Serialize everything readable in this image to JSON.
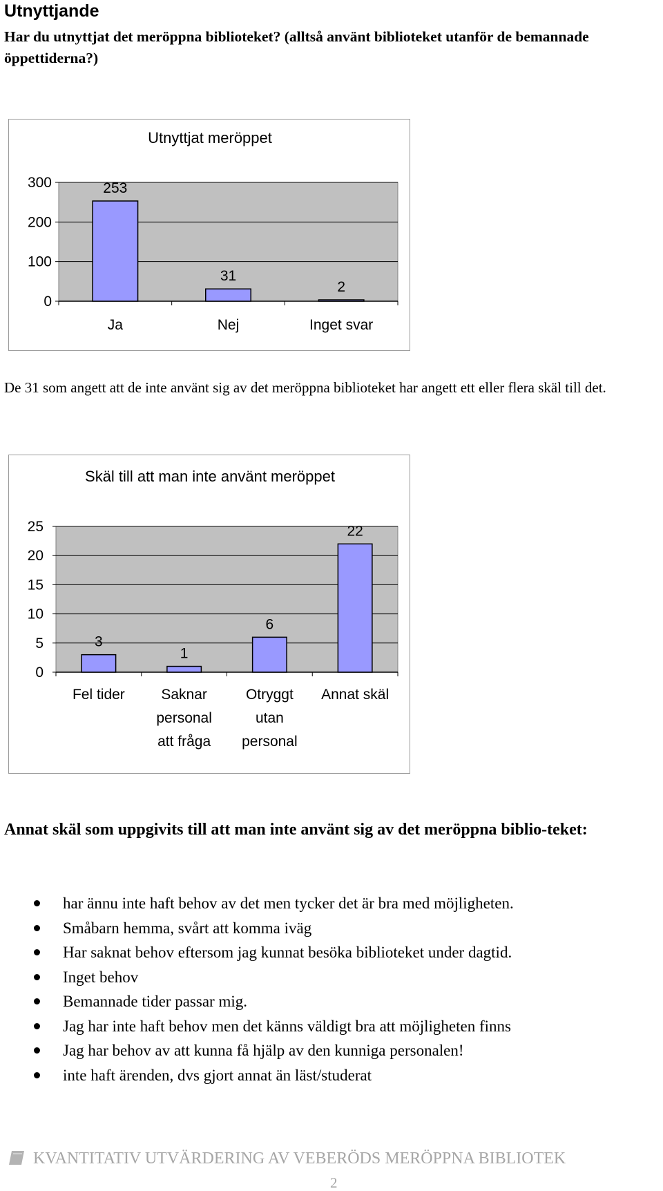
{
  "section_title": "Utnyttjande",
  "question": "Har du utnyttjat det meröppna biblioteket? (alltså använt biblioteket utanför de bemannade öppettiderna?)",
  "paragraph": "De 31 som angett att de inte använt sig av det meröppna biblioteket har angett ett eller flera skäl till det.",
  "subheading": "Annat skäl som uppgivits till att man inte använt sig av det meröppna biblio-teket:",
  "bullets": [
    "har ännu inte haft behov av det men tycker det är bra med möjligheten.",
    "Småbarn hemma, svårt att komma iväg",
    "Har saknat behov eftersom jag kunnat besöka biblioteket under dagtid.",
    "Inget behov",
    "Bemannade tider passar mig.",
    "Jag har inte haft behov men det känns väldigt bra att möjligheten finns",
    "Jag har behov av att kunna få hjälp av den kunniga personalen!",
    "inte haft ärenden, dvs gjort annat än läst/studerat"
  ],
  "footer": {
    "text": "KVANTITATIV UTVÄRDERING AV VEBERÖDS MERÖPPNA BIBLIOTEK",
    "page_number": "2"
  },
  "colors": {
    "bar_fill": "#9999ff",
    "plot_bg": "#c0c0c0",
    "footer_gray": "#a6a6a6"
  },
  "chart_data": [
    {
      "type": "bar",
      "title": "Utnyttjat meröppet",
      "categories": [
        "Ja",
        "Nej",
        "Inget svar"
      ],
      "values": [
        253,
        31,
        2
      ],
      "value_labels": [
        "253",
        "31",
        "2"
      ],
      "ylim": [
        0,
        300
      ],
      "yticks": [
        "300",
        "200",
        "100",
        "0"
      ],
      "xlabel": "",
      "ylabel": "",
      "grid": true
    },
    {
      "type": "bar",
      "title": "Skäl till att man inte använt meröppet",
      "categories": [
        "Fel tider",
        "Saknar personal att fråga",
        "Otryggt utan personal",
        "Annat skäl"
      ],
      "category_lines": [
        [
          "Fel tider"
        ],
        [
          "Saknar",
          "personal",
          "att fråga"
        ],
        [
          "Otryggt",
          "utan",
          "personal"
        ],
        [
          "Annat skäl"
        ]
      ],
      "values": [
        3,
        1,
        6,
        22
      ],
      "value_labels": [
        "3",
        "1",
        "6",
        "22"
      ],
      "ylim": [
        0,
        25
      ],
      "yticks": [
        "25",
        "20",
        "15",
        "10",
        "5",
        "0"
      ],
      "xlabel": "",
      "ylabel": "",
      "grid": true
    }
  ]
}
